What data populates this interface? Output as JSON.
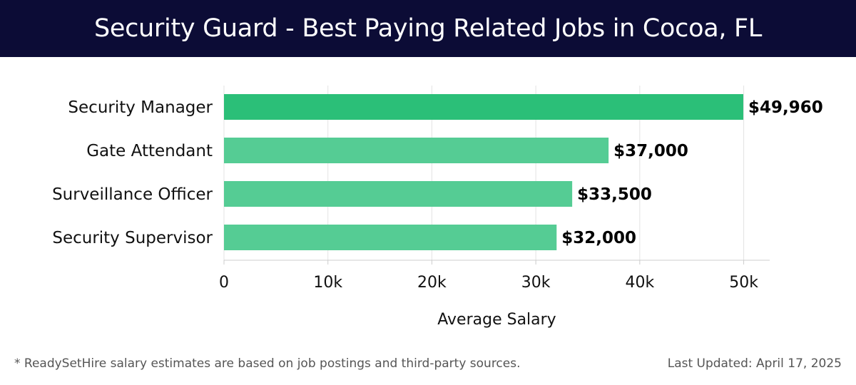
{
  "header": {
    "title": "Security Guard - Best Paying Related Jobs in Cocoa, FL"
  },
  "chart_data": {
    "type": "bar",
    "orientation": "horizontal",
    "categories": [
      "Security Manager",
      "Gate Attendant",
      "Surveillance Officer",
      "Security Supervisor"
    ],
    "values": [
      49960,
      37000,
      33500,
      32000
    ],
    "value_labels": [
      "$49,960",
      "$37,000",
      "$33,500",
      "$32,000"
    ],
    "xlabel": "Average Salary",
    "ylabel": "",
    "xlim": [
      0,
      52500
    ],
    "x_ticks": [
      0,
      10000,
      20000,
      30000,
      40000,
      50000
    ],
    "x_tick_labels": [
      "0",
      "10k",
      "20k",
      "30k",
      "40k",
      "50k"
    ],
    "grid": true,
    "colors": {
      "highlight": "#2bbf78",
      "bar": "#55cc94",
      "grid": "#e3e3e3",
      "axis": "#cccccc",
      "text": "#111111"
    }
  },
  "footer": {
    "note": "* ReadySetHire salary estimates are based on job postings and third-party sources.",
    "updated": "Last Updated: April 17, 2025"
  }
}
